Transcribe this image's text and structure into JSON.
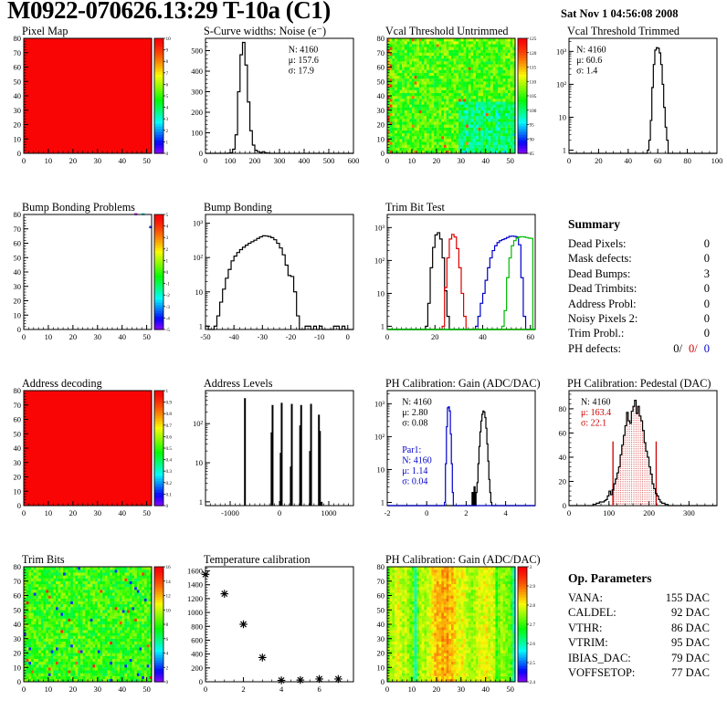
{
  "header": {
    "title": "M0922-070626.13:29 T-10a (C1)",
    "date": "Sat Nov  1 04:56:08 2008"
  },
  "colors": {
    "red": "#cc0000",
    "blue": "#0000cc",
    "green": "#00aa00",
    "black": "#000000",
    "map_red": "#ff0000"
  },
  "summary": {
    "title": "Summary",
    "rows": [
      [
        "Dead Pixels:",
        "0"
      ],
      [
        "Mask defects:",
        "0"
      ],
      [
        "Dead Bumps:",
        "3"
      ],
      [
        "Dead Trimbits:",
        "0"
      ],
      [
        "Address Probl:",
        "0"
      ],
      [
        "Noisy Pixels 2:",
        "0"
      ],
      [
        "Trim Probl.:",
        "0"
      ]
    ],
    "ph": {
      "label": "PH defects:",
      "black": "0/",
      "red": "0/",
      "blue": "0"
    }
  },
  "op_parameters": {
    "title": "Op. Parameters",
    "rows": [
      [
        "VANA:",
        "155 DAC"
      ],
      [
        "CALDEL:",
        "92 DAC"
      ],
      [
        "VTHR:",
        "86 DAC"
      ],
      [
        "VTRIM:",
        "95 DAC"
      ],
      [
        "IBIAS_DAC:",
        "79 DAC"
      ],
      [
        "VOFFSETOP:",
        "77 DAC"
      ]
    ]
  },
  "chart_data": [
    {
      "id": "pixel-map",
      "type": "heatmap",
      "title": "Pixel Map",
      "grid": [
        0,
        0
      ],
      "xlim": [
        0,
        52
      ],
      "ylim": [
        0,
        80
      ],
      "xticks": [
        0,
        10,
        20,
        30,
        40,
        50
      ],
      "yticks": [
        0,
        10,
        20,
        30,
        40,
        50,
        60,
        70,
        80
      ],
      "x_minor": 2,
      "y_minor": 2,
      "pattern": "uniform",
      "zlim": [
        0,
        10
      ],
      "colorbar": {
        "labels": [
          "0",
          "1",
          "2",
          "3",
          "4",
          "5",
          "6",
          "7",
          "8",
          "9",
          "10"
        ]
      }
    },
    {
      "id": "scurve-noise",
      "type": "histogram",
      "title": "S-Curve widths: Noise (e⁻)",
      "grid": [
        0,
        1
      ],
      "xlim": [
        0,
        600
      ],
      "ylim": [
        0,
        560
      ],
      "xticks": [
        0,
        100,
        200,
        300,
        400,
        500,
        600
      ],
      "yticks": [
        0,
        100,
        200,
        300,
        400,
        500
      ],
      "x_minor": 20,
      "y_minor": 20,
      "series": [
        {
          "color": "#000000",
          "x0": 90,
          "bw": 10,
          "values": [
            1,
            3,
            20,
            90,
            300,
            480,
            540,
            430,
            250,
            110,
            40,
            15,
            8,
            4,
            8,
            3,
            1
          ]
        }
      ],
      "stats": {
        "x": 0.56,
        "y": 0.05,
        "lines": [
          {
            "text": "N: 4160",
            "color": "#000000"
          },
          {
            "text": "μ: 157.6",
            "color": "#000000"
          },
          {
            "text": "σ: 17.9",
            "color": "#000000"
          }
        ]
      }
    },
    {
      "id": "vcal-threshold-untrimmed",
      "type": "heatmap",
      "title": "Vcal Threshold Untrimmed",
      "grid": [
        0,
        2
      ],
      "xlim": [
        0,
        52
      ],
      "ylim": [
        0,
        80
      ],
      "xticks": [
        0,
        10,
        20,
        30,
        40,
        50
      ],
      "yticks": [
        0,
        10,
        20,
        30,
        40,
        50,
        60,
        70,
        80
      ],
      "x_minor": 2,
      "y_minor": 2,
      "pattern": "threshold",
      "zlim": [
        85,
        125
      ],
      "colorbar": {
        "labels": [
          "85",
          "90",
          "95",
          "100",
          "105",
          "110",
          "115",
          "120",
          "125"
        ]
      }
    },
    {
      "id": "vcal-threshold-trimmed",
      "type": "histogram",
      "title": "Vcal Threshold Trimmed",
      "grid": [
        0,
        3
      ],
      "xlim": [
        0,
        100
      ],
      "ylog": true,
      "ylim": [
        0.8,
        2500
      ],
      "xticks": [
        0,
        20,
        40,
        60,
        80,
        100
      ],
      "x_minor": 5,
      "series": [
        {
          "color": "#000000",
          "x0": 53,
          "bw": 1,
          "values": [
            1,
            2,
            8,
            80,
            400,
            1100,
            1300,
            1250,
            900,
            400,
            100,
            20,
            5,
            2
          ]
        }
      ],
      "stats": {
        "x": 0.05,
        "y": 0.05,
        "lines": [
          {
            "text": "N: 4160",
            "color": "#000000"
          },
          {
            "text": "μ: 60.6",
            "color": "#000000"
          },
          {
            "text": "σ:  1.4",
            "color": "#000000"
          }
        ]
      }
    },
    {
      "id": "bump-bonding-problems",
      "type": "heatmap",
      "title": "Bump Bonding Problems",
      "grid": [
        1,
        0
      ],
      "xlim": [
        0,
        52
      ],
      "ylim": [
        0,
        80
      ],
      "xticks": [
        0,
        10,
        20,
        30,
        40,
        50
      ],
      "yticks": [
        0,
        10,
        20,
        30,
        40,
        50,
        60,
        70,
        80
      ],
      "x_minor": 2,
      "y_minor": 2,
      "pattern": "sparse",
      "zlim": [
        -5,
        5
      ],
      "points_colored": [
        [
          45,
          79,
          "#bb44ff"
        ],
        [
          48,
          79,
          "#44ddee"
        ],
        [
          51,
          70,
          "#2233cc"
        ]
      ],
      "colorbar": {
        "labels": [
          "-5",
          "-4",
          "-3",
          "-2",
          "-1",
          "0",
          "1",
          "2",
          "3",
          "4",
          "5"
        ]
      }
    },
    {
      "id": "bump-bonding",
      "type": "histogram",
      "title": "Bump Bonding",
      "grid": [
        1,
        1
      ],
      "xlim": [
        -50,
        2
      ],
      "ylog": true,
      "ylim": [
        0.8,
        1800
      ],
      "xticks": [
        -50,
        -40,
        -30,
        -20,
        -10,
        0
      ],
      "x_minor": 2,
      "series": [
        {
          "color": "#000000",
          "x0": -50,
          "bw": 1,
          "values": [
            1,
            0,
            0,
            1,
            2,
            5,
            12,
            25,
            45,
            80,
            110,
            140,
            170,
            200,
            230,
            260,
            290,
            320,
            360,
            400,
            430,
            425,
            410,
            380,
            330,
            260,
            190,
            120,
            60,
            30,
            28,
            10,
            2,
            0,
            0,
            1,
            1,
            0,
            1,
            0,
            1,
            0,
            0,
            0,
            0,
            1,
            1,
            0,
            1,
            0,
            0
          ]
        }
      ]
    },
    {
      "id": "trim-bit-test",
      "type": "histogram",
      "title": "Trim Bit Test",
      "grid": [
        1,
        2
      ],
      "xlim": [
        0,
        62
      ],
      "ylog": true,
      "ylim": [
        0.8,
        2500
      ],
      "xticks": [
        0,
        20,
        40,
        60
      ],
      "x_minor": 2,
      "green_baseline": true,
      "series": [
        {
          "color": "#000000",
          "x0": 16,
          "bw": 1,
          "values": [
            1,
            5,
            60,
            250,
            600,
            700,
            450,
            120,
            12,
            2
          ]
        },
        {
          "color": "#dd0000",
          "x0": 23,
          "bw": 1,
          "values": [
            1,
            15,
            120,
            450,
            620,
            520,
            230,
            60,
            10,
            2
          ]
        },
        {
          "color": "#0000cc",
          "x0": 37,
          "bw": 1,
          "values": [
            1,
            2,
            5,
            10,
            25,
            60,
            120,
            200,
            280,
            350,
            400,
            430,
            460,
            500,
            540,
            550,
            540,
            520,
            300,
            30,
            2
          ]
        },
        {
          "color": "#00bb00",
          "x0": 48,
          "bw": 1,
          "values": [
            1,
            3,
            30,
            120,
            280,
            400,
            480,
            520,
            530,
            520,
            500,
            480,
            470
          ]
        }
      ]
    },
    {
      "id": "address-decoding",
      "type": "heatmap",
      "title": "Address decoding",
      "grid": [
        2,
        0
      ],
      "xlim": [
        0,
        52
      ],
      "ylim": [
        0,
        80
      ],
      "xticks": [
        0,
        10,
        20,
        30,
        40,
        50
      ],
      "yticks": [
        0,
        10,
        20,
        30,
        40,
        50,
        60,
        70,
        80
      ],
      "x_minor": 2,
      "y_minor": 2,
      "pattern": "uniform",
      "zlim": [
        0,
        1
      ],
      "colorbar": {
        "labels": [
          "0",
          "0.1",
          "0.2",
          "0.3",
          "0.4",
          "0.5",
          "0.6",
          "0.7",
          "0.8",
          "0.9",
          "1"
        ]
      }
    },
    {
      "id": "address-levels",
      "type": "spikes",
      "title": "Address Levels",
      "grid": [
        2,
        1
      ],
      "xlim": [
        -1500,
        1500
      ],
      "ylog": true,
      "ylim": [
        0.8,
        700
      ],
      "xticks": [
        -1000,
        0,
        1000
      ],
      "x_minor": 100,
      "spikes": [
        [
          -700,
          450
        ],
        [
          -160,
          60
        ],
        [
          -140,
          300
        ],
        [
          25,
          18
        ],
        [
          45,
          340
        ],
        [
          230,
          8
        ],
        [
          250,
          320
        ],
        [
          420,
          90
        ],
        [
          440,
          300
        ],
        [
          620,
          20
        ],
        [
          640,
          320
        ],
        [
          800,
          170
        ],
        [
          820,
          65
        ],
        [
          855,
          1
        ]
      ]
    },
    {
      "id": "ph-calibration-gain-hist",
      "type": "histogram",
      "title": "PH Calibration: Gain (ADC/DAC)",
      "grid": [
        2,
        2
      ],
      "xlim": [
        -2,
        5.5
      ],
      "ylog": true,
      "ylim": [
        0.8,
        2500
      ],
      "xticks": [
        -2,
        0,
        2,
        4
      ],
      "x_minor": 0.5,
      "series": [
        {
          "color": "#000000",
          "x0": 2.3,
          "bw": 0.05,
          "values": [
            2,
            0,
            3,
            0,
            2,
            4,
            15,
            50,
            140,
            300,
            480,
            600,
            560,
            380,
            180,
            60,
            18,
            5,
            2,
            1
          ]
        },
        {
          "color": "#0000cc",
          "x0": 0.9,
          "bw": 0.05,
          "values": [
            1,
            15,
            200,
            750,
            800,
            600,
            120,
            15,
            2
          ]
        }
      ],
      "stats": {
        "x": 0.1,
        "y": 0.05,
        "lines": [
          {
            "text": "N: 4160",
            "color": "#000000"
          },
          {
            "text": "μ: 2.80",
            "color": "#000000"
          },
          {
            "text": "σ: 0.08",
            "color": "#000000"
          }
        ]
      },
      "stats2": {
        "x": 0.1,
        "y": 0.47,
        "lines": [
          {
            "text": "Par1:",
            "color": "#0000cc"
          },
          {
            "text": "N: 4160",
            "color": "#0000cc"
          },
          {
            "text": "μ: 1.14",
            "color": "#0000cc"
          },
          {
            "text": "σ: 0.04",
            "color": "#0000cc"
          }
        ]
      }
    },
    {
      "id": "ph-calibration-pedestal",
      "type": "histogram",
      "title": "PH Calibration: Pedestal (DAC)",
      "grid": [
        2,
        3
      ],
      "xlim": [
        0,
        370
      ],
      "ylim": [
        0,
        95
      ],
      "xticks": [
        0,
        100,
        200,
        300
      ],
      "yticks": [
        0,
        20,
        40,
        60,
        80
      ],
      "x_minor": 20,
      "y_minor": 4,
      "series": [
        {
          "color": "#000000",
          "x0": 60,
          "bw": 4,
          "values": [
            1,
            1,
            2,
            2,
            3,
            3,
            3,
            4,
            5,
            8,
            12,
            9,
            13,
            18,
            22,
            27,
            32,
            42,
            50,
            58,
            66,
            77,
            70,
            68,
            78,
            82,
            87,
            76,
            82,
            74,
            70,
            62,
            52,
            45,
            40,
            32,
            26,
            18,
            14,
            10,
            8,
            5,
            3,
            2,
            2,
            1,
            1
          ],
          "fill_dots": {
            "from": 110,
            "to": 218
          }
        }
      ],
      "red_lines": {
        "xs": [
          110,
          218
        ],
        "height": 53,
        "color": "#cc0000"
      },
      "stats": {
        "x": 0.08,
        "y": 0.05,
        "lines": [
          {
            "text": "N: 4160",
            "color": "#000000"
          },
          {
            "text": "μ: 163.4",
            "color": "#cc0000"
          },
          {
            "text": "σ: 22.1",
            "color": "#cc0000"
          }
        ]
      }
    },
    {
      "id": "trim-bits",
      "type": "heatmap",
      "title": "Trim Bits",
      "grid": [
        3,
        0
      ],
      "xlim": [
        0,
        52
      ],
      "ylim": [
        0,
        80
      ],
      "xticks": [
        0,
        10,
        20,
        30,
        40,
        50
      ],
      "yticks": [
        0,
        10,
        20,
        30,
        40,
        50,
        60,
        70,
        80
      ],
      "x_minor": 2,
      "y_minor": 2,
      "pattern": "trim",
      "zlim": [
        0,
        16
      ],
      "colorbar": {
        "labels": [
          "0",
          "2",
          "4",
          "6",
          "8",
          "10",
          "12",
          "14",
          "16"
        ]
      }
    },
    {
      "id": "temperature-calibration",
      "type": "scatter",
      "title": "Temperature calibration",
      "grid": [
        3,
        1
      ],
      "xlim": [
        0,
        7.8
      ],
      "ylim": [
        0,
        1660
      ],
      "xticks": [
        0,
        2,
        4,
        6
      ],
      "yticks": [
        0,
        200,
        400,
        600,
        800,
        1000,
        1200,
        1400,
        1600
      ],
      "x_minor": 0.5,
      "y_minor": 40,
      "points": [
        [
          0,
          1550
        ],
        [
          1,
          1270
        ],
        [
          2,
          830
        ],
        [
          3,
          350
        ],
        [
          4,
          20
        ],
        [
          5,
          25
        ],
        [
          6,
          40
        ],
        [
          7,
          40
        ]
      ]
    },
    {
      "id": "ph-calibration-gain-map",
      "type": "heatmap",
      "title": "PH Calibration: Gain (ADC/DAC)",
      "grid": [
        3,
        2
      ],
      "xlim": [
        0,
        52
      ],
      "ylim": [
        0,
        80
      ],
      "xticks": [
        0,
        10,
        20,
        30,
        40,
        50
      ],
      "yticks": [
        0,
        10,
        20,
        30,
        40,
        50,
        60,
        70,
        80
      ],
      "x_minor": 2,
      "y_minor": 2,
      "pattern": "stripes",
      "zlim": [
        2.4,
        3.0
      ],
      "column_base": [
        0.55,
        0.62,
        0.6,
        0.66,
        0.68,
        0.63,
        0.6,
        0.64,
        0.58,
        0.56,
        0.55,
        0.3,
        0.55,
        0.6,
        0.62,
        0.6,
        0.63,
        0.66,
        0.7,
        0.74,
        0.76,
        0.73,
        0.79,
        0.76,
        0.79,
        0.74,
        0.76,
        0.71,
        0.68,
        0.64,
        0.69,
        0.66,
        0.62,
        0.6,
        0.58,
        0.6,
        0.63,
        0.67,
        0.64,
        0.67,
        0.69,
        0.64,
        0.66,
        0.62,
        0.5,
        0.56,
        0.6,
        0.58,
        0.56,
        0.55,
        0.52,
        0.3
      ],
      "colorbar": {
        "labels": [
          "2.4",
          "2.5",
          "2.6",
          "2.7",
          "2.8",
          "2.9",
          "3"
        ]
      }
    }
  ]
}
